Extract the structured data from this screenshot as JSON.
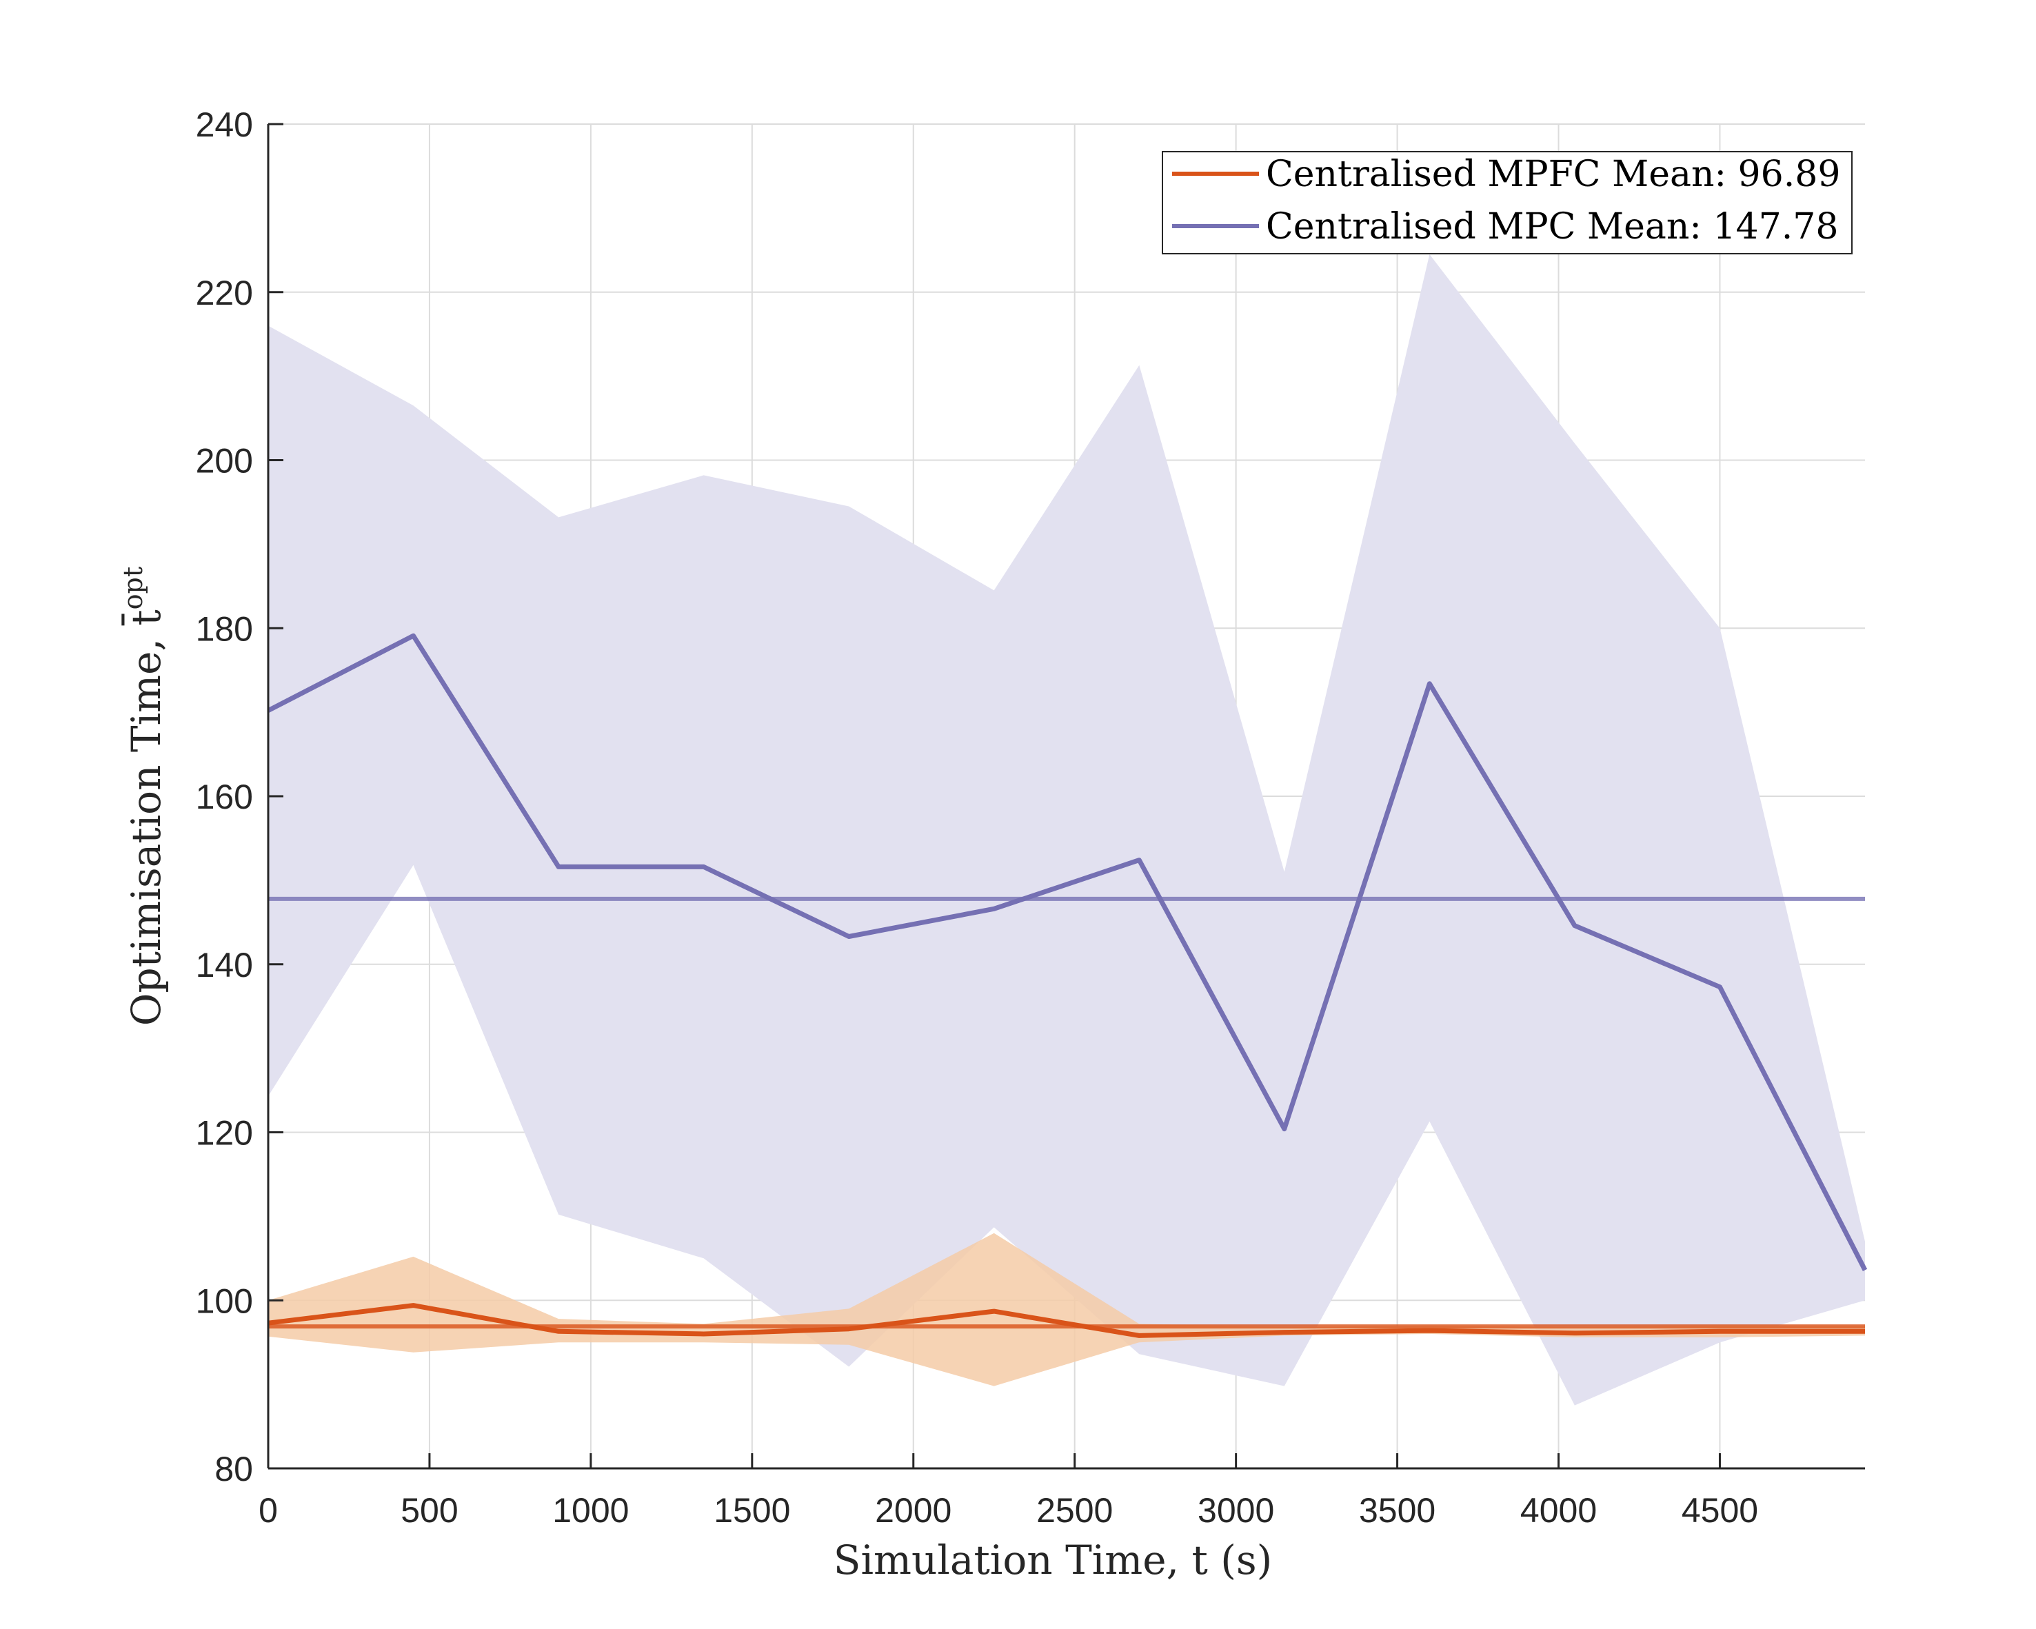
{
  "chart_data": {
    "type": "line",
    "xlabel": "Simulation Time, t (s)",
    "ylabel": "Optimisation Time, t̄",
    "ylabel_superscript": "opt",
    "xlim": [
      0,
      4950
    ],
    "ylim": [
      80,
      240
    ],
    "xticks": [
      0,
      500,
      1000,
      1500,
      2000,
      2500,
      3000,
      3500,
      4000,
      4500
    ],
    "yticks": [
      80,
      100,
      120,
      140,
      160,
      180,
      200,
      220,
      240
    ],
    "grid": true,
    "legend_position": "top-right",
    "x": [
      0,
      450,
      900,
      1350,
      1800,
      2250,
      2700,
      3150,
      3600,
      4050,
      4500,
      4950
    ],
    "series": [
      {
        "name": "Centralised MPFC Mean: 96.89",
        "color": "#d95319",
        "band_color": "#f5cba7",
        "values": [
          97.3,
          99.4,
          96.3,
          96.0,
          96.6,
          98.7,
          95.8,
          96.2,
          96.4,
          96.1,
          96.3,
          96.3
        ],
        "upper": [
          100.0,
          105.2,
          97.8,
          97.2,
          99.0,
          108.0,
          97.2,
          96.8,
          97.0,
          96.8,
          97.0,
          97.0
        ],
        "lower": [
          95.7,
          93.8,
          95.0,
          95.0,
          94.7,
          89.8,
          95.0,
          95.8,
          96.0,
          95.6,
          95.6,
          95.8
        ],
        "mean": 96.89
      },
      {
        "name": "Centralised MPC Mean: 147.78",
        "color": "#7570b3",
        "band_color": "#e2e1f0",
        "values": [
          170.2,
          179.1,
          151.6,
          151.6,
          143.3,
          146.6,
          152.4,
          120.4,
          173.4,
          144.6,
          137.3,
          103.6
        ],
        "upper": [
          216.0,
          206.5,
          193.2,
          198.2,
          194.5,
          184.5,
          211.3,
          151.0,
          224.5,
          202.0,
          180.0,
          107.0
        ],
        "lower": [
          124.3,
          151.8,
          110.2,
          105.0,
          92.1,
          108.7,
          93.6,
          89.8,
          121.3,
          87.5,
          95.0,
          100.0
        ],
        "mean": 147.78
      }
    ]
  }
}
